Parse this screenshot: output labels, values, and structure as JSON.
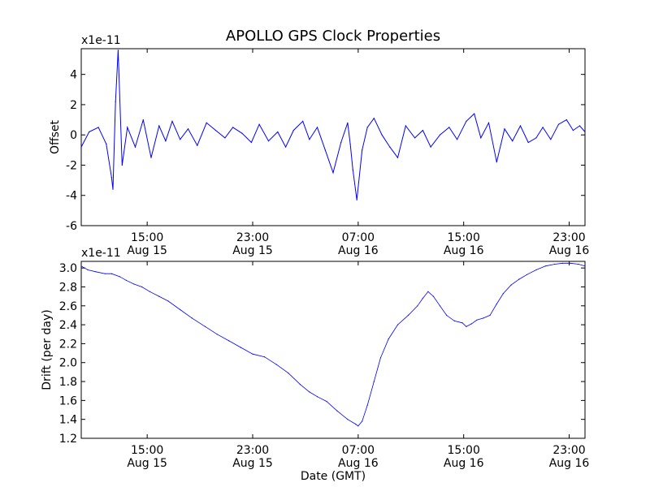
{
  "chart_data": [
    {
      "type": "line",
      "title": "APOLLO GPS Clock Properties",
      "ylabel": "Offset",
      "y_multiplier": "x1e-11",
      "ylim": [
        -6,
        5.7
      ],
      "yticks": [
        -6,
        -4,
        -2,
        0,
        2,
        4
      ],
      "ytick_labels": [
        "-6",
        "-4",
        "-2",
        "0",
        "2",
        "4"
      ],
      "xlim_hours": [
        10.0,
        48.2
      ],
      "xticks_hours": [
        15,
        23,
        31,
        39,
        47
      ],
      "xtick_labels": [
        [
          "15:00",
          "Aug 15"
        ],
        [
          "23:00",
          "Aug 15"
        ],
        [
          "07:00",
          "Aug 16"
        ],
        [
          "15:00",
          "Aug 16"
        ],
        [
          "23:00",
          "Aug 16"
        ]
      ],
      "color": "#0000ff",
      "series": [
        {
          "name": "Offset",
          "x": [
            10.0,
            10.6,
            11.3,
            11.9,
            12.3,
            12.4,
            12.6,
            12.8,
            13.1,
            13.5,
            14.1,
            14.7,
            15.3,
            15.9,
            16.4,
            16.9,
            17.5,
            18.1,
            18.8,
            19.5,
            20.2,
            20.9,
            21.5,
            22.2,
            22.9,
            23.5,
            24.2,
            24.9,
            25.5,
            26.1,
            26.8,
            27.3,
            27.9,
            28.5,
            29.1,
            29.7,
            30.2,
            30.4,
            30.6,
            30.9,
            31.3,
            31.7,
            32.2,
            32.8,
            33.4,
            34.0,
            34.6,
            35.3,
            35.9,
            36.5,
            37.2,
            37.9,
            38.5,
            39.2,
            39.8,
            40.3,
            40.9,
            41.5,
            42.1,
            42.7,
            43.3,
            43.9,
            44.5,
            45.0,
            45.6,
            46.2,
            46.8,
            47.3,
            47.8,
            48.2
          ],
          "y": [
            -0.8,
            0.2,
            0.5,
            -0.6,
            -2.8,
            -3.6,
            2.2,
            5.6,
            -2.0,
            0.5,
            -0.8,
            1.0,
            -1.5,
            0.6,
            -0.4,
            0.9,
            -0.3,
            0.4,
            -0.7,
            0.8,
            0.3,
            -0.2,
            0.5,
            0.1,
            -0.5,
            0.7,
            -0.4,
            0.2,
            -0.8,
            0.3,
            0.9,
            -0.3,
            0.5,
            -1.0,
            -2.5,
            -0.5,
            0.8,
            -0.6,
            -2.3,
            -4.3,
            -1.0,
            0.5,
            1.1,
            0.0,
            -0.8,
            -1.5,
            0.6,
            -0.2,
            0.3,
            -0.8,
            0.0,
            0.5,
            -0.3,
            0.9,
            1.4,
            -0.2,
            0.8,
            -1.8,
            0.4,
            -0.4,
            0.6,
            -0.5,
            -0.2,
            0.5,
            -0.3,
            0.7,
            1.0,
            0.3,
            0.6,
            0.2
          ]
        }
      ]
    },
    {
      "type": "line",
      "ylabel": "Drift (per day)",
      "xlabel": "Date (GMT)",
      "y_multiplier": "x1e-11",
      "ylim": [
        1.2,
        3.07
      ],
      "yticks": [
        1.2,
        1.4,
        1.6,
        1.8,
        2.0,
        2.2,
        2.4,
        2.6,
        2.8,
        3.0
      ],
      "ytick_labels": [
        "1.2",
        "1.4",
        "1.6",
        "1.8",
        "2.0",
        "2.2",
        "2.4",
        "2.6",
        "2.8",
        "3.0"
      ],
      "xlim_hours": [
        10.0,
        48.2
      ],
      "xticks_hours": [
        15,
        23,
        31,
        39,
        47
      ],
      "xtick_labels": [
        [
          "15:00",
          "Aug 15"
        ],
        [
          "23:00",
          "Aug 15"
        ],
        [
          "07:00",
          "Aug 16"
        ],
        [
          "15:00",
          "Aug 16"
        ],
        [
          "23:00",
          "Aug 16"
        ]
      ],
      "color": "#0000ff",
      "series": [
        {
          "name": "Drift",
          "x": [
            10.0,
            10.5,
            11.1,
            11.8,
            12.3,
            12.9,
            13.4,
            14.0,
            14.6,
            15.2,
            15.9,
            16.6,
            17.5,
            18.4,
            19.4,
            20.3,
            21.2,
            22.1,
            23.0,
            23.9,
            24.8,
            25.7,
            26.6,
            27.3,
            27.9,
            28.6,
            29.4,
            30.2,
            30.8,
            31.0,
            31.3,
            31.7,
            32.2,
            32.7,
            33.3,
            34.0,
            34.8,
            35.5,
            35.9,
            36.3,
            36.7,
            37.2,
            37.7,
            38.3,
            38.9,
            39.2,
            39.6,
            40.0,
            40.5,
            41.0,
            41.5,
            42.0,
            42.6,
            43.2,
            43.8,
            44.5,
            45.2,
            45.9,
            46.5,
            47.1,
            47.7,
            48.2
          ],
          "y": [
            3.02,
            2.98,
            2.96,
            2.94,
            2.94,
            2.91,
            2.87,
            2.83,
            2.8,
            2.75,
            2.7,
            2.65,
            2.56,
            2.47,
            2.38,
            2.3,
            2.23,
            2.16,
            2.09,
            2.06,
            1.98,
            1.89,
            1.77,
            1.69,
            1.64,
            1.59,
            1.49,
            1.4,
            1.35,
            1.33,
            1.38,
            1.55,
            1.8,
            2.05,
            2.25,
            2.4,
            2.5,
            2.6,
            2.68,
            2.75,
            2.7,
            2.6,
            2.5,
            2.44,
            2.42,
            2.38,
            2.41,
            2.45,
            2.47,
            2.5,
            2.62,
            2.73,
            2.82,
            2.88,
            2.93,
            2.98,
            3.02,
            3.04,
            3.05,
            3.05,
            3.04,
            3.02
          ]
        }
      ]
    }
  ]
}
